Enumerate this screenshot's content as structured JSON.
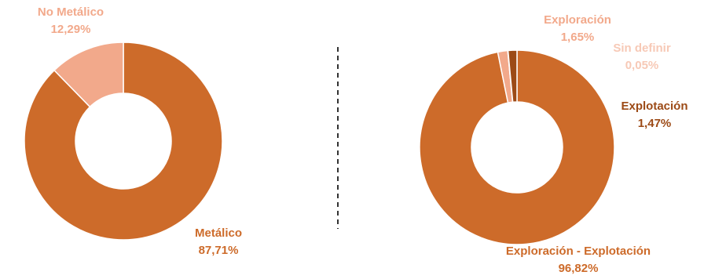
{
  "chart_data": [
    {
      "type": "pie",
      "donut": true,
      "title": "",
      "slices": [
        {
          "name": "Metálico",
          "value": 87.71,
          "value_label": "87,71%",
          "color": "#CD6B2A"
        },
        {
          "name": "No Metálico",
          "value": 12.29,
          "value_label": "12,29%",
          "color": "#F2A98B"
        }
      ]
    },
    {
      "type": "pie",
      "donut": true,
      "title": "",
      "slices": [
        {
          "name": "Exploración - Explotación",
          "value": 96.82,
          "value_label": "96,82%",
          "color": "#CD6B2A"
        },
        {
          "name": "Exploración",
          "value": 1.65,
          "value_label": "1,65%",
          "color": "#F2A98B"
        },
        {
          "name": "Sin definir",
          "value": 0.05,
          "value_label": "0,05%",
          "color": "#F7C9B6"
        },
        {
          "name": "Explotación",
          "value": 1.47,
          "value_label": "1,47%",
          "color": "#9C4A16"
        }
      ]
    }
  ]
}
